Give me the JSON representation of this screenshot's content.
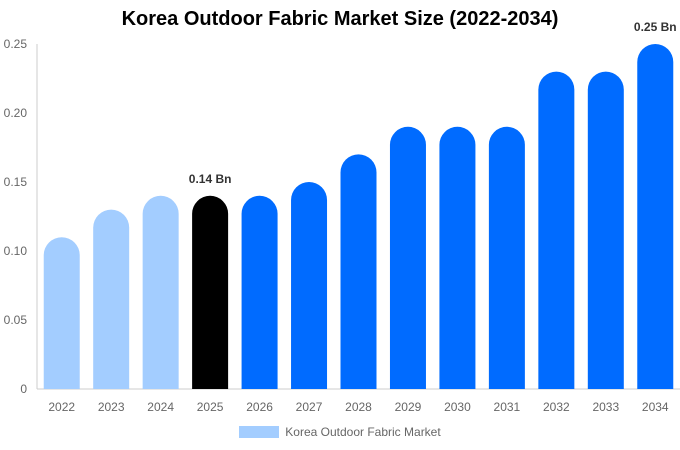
{
  "colors": {
    "historical": "#a3cdff",
    "current": "#000000",
    "forecast": "#006bff",
    "axis": "#cccccc",
    "tick_text": "#666666",
    "label_text": "#333333"
  },
  "chart_data": {
    "type": "bar",
    "title": "Korea Outdoor Fabric Market Size (2022-2034)",
    "xlabel": "",
    "ylabel": "",
    "categories": [
      "2022",
      "2023",
      "2024",
      "2025",
      "2026",
      "2027",
      "2028",
      "2029",
      "2030",
      "2031",
      "2032",
      "2033",
      "2034"
    ],
    "series": [
      {
        "name": "Korea Outdoor Fabric Market",
        "values": [
          0.11,
          0.13,
          0.14,
          0.14,
          0.14,
          0.15,
          0.17,
          0.19,
          0.19,
          0.19,
          0.23,
          0.23,
          0.25
        ]
      }
    ],
    "bar_color_groups": [
      "historical",
      "historical",
      "historical",
      "current",
      "forecast",
      "forecast",
      "forecast",
      "forecast",
      "forecast",
      "forecast",
      "forecast",
      "forecast",
      "forecast"
    ],
    "ylim": [
      0,
      0.25
    ],
    "yticks": [
      0,
      0.05,
      0.1,
      0.15,
      0.2,
      0.25
    ],
    "ytick_labels": [
      "0",
      "0.05",
      "0.10",
      "0.15",
      "0.20",
      "0.25"
    ],
    "annotations": [
      {
        "category": "2025",
        "text": "0.14 Bn"
      },
      {
        "category": "2034",
        "text": "0.25 Bn"
      }
    ],
    "grid": false,
    "legend_position": "bottom-center"
  }
}
